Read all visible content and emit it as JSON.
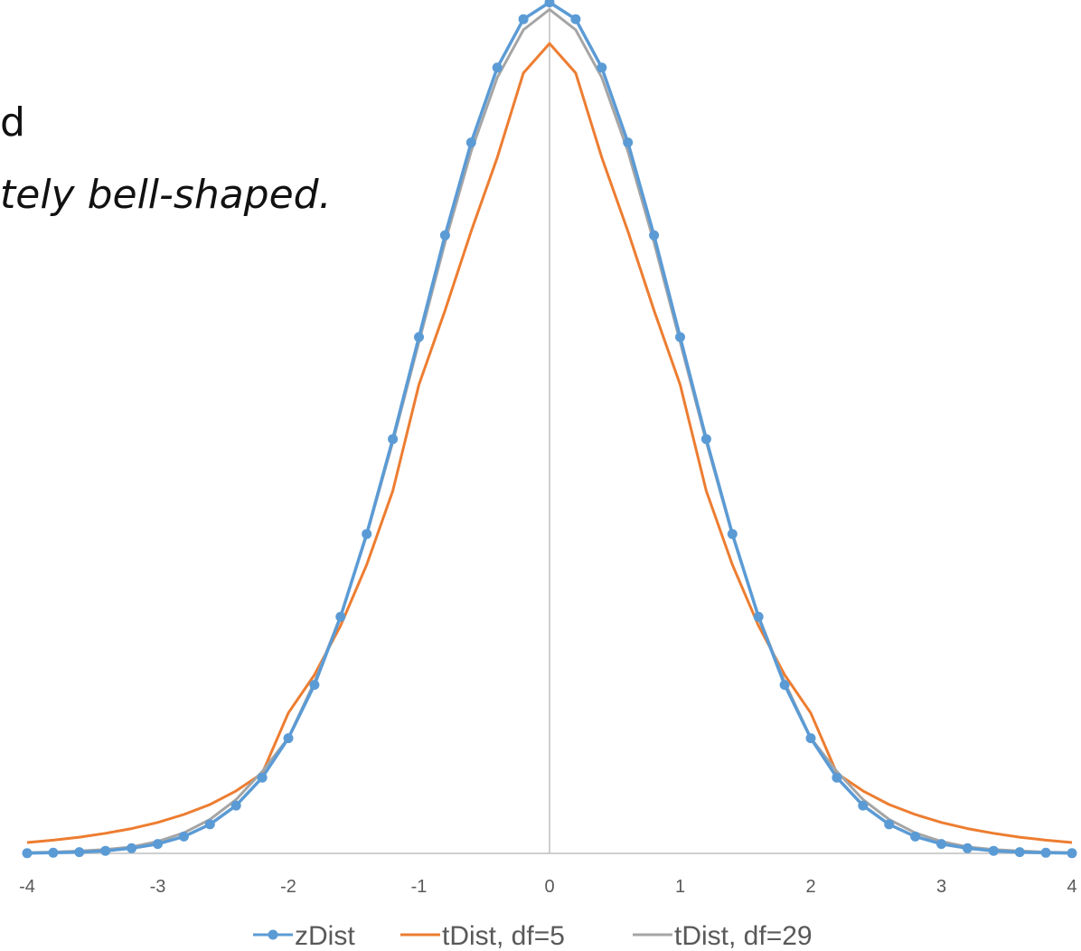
{
  "slide": {
    "line1": "d",
    "line2": "tely bell-shaped."
  },
  "chart_data": {
    "type": "line",
    "xlim": [
      -4,
      4
    ],
    "ylim": [
      0,
      0.4
    ],
    "x_ticks": [
      "-4",
      "-3",
      "-2",
      "-1",
      "0",
      "1",
      "2",
      "3",
      "4"
    ],
    "x": [
      -4,
      -3.8,
      -3.6,
      -3.4,
      -3.2,
      -3,
      -2.8,
      -2.6,
      -2.4,
      -2.2,
      -2,
      -1.8,
      -1.6,
      -1.4,
      -1.2,
      -1,
      -0.8,
      -0.6,
      -0.4,
      -0.2,
      0,
      0.2,
      0.4,
      0.6,
      0.8,
      1,
      1.2,
      1.4,
      1.6,
      1.8,
      2,
      2.2,
      2.4,
      2.6,
      2.8,
      3,
      3.2,
      3.4,
      3.6,
      3.8,
      4
    ],
    "series": [
      {
        "name": "zDist",
        "color": "#5B9BD5",
        "marker": "circle",
        "values": [
          0.0001,
          0.0003,
          0.0006,
          0.0012,
          0.0024,
          0.0044,
          0.0079,
          0.0136,
          0.0224,
          0.0355,
          0.054,
          0.079,
          0.1109,
          0.1497,
          0.1942,
          0.242,
          0.2897,
          0.3332,
          0.3683,
          0.391,
          0.3989,
          0.391,
          0.3683,
          0.3332,
          0.2897,
          0.242,
          0.1942,
          0.1497,
          0.1109,
          0.079,
          0.054,
          0.0355,
          0.0224,
          0.0136,
          0.0079,
          0.0044,
          0.0024,
          0.0012,
          0.0006,
          0.0003,
          0.0001
        ]
      },
      {
        "name": "tDist, df=5",
        "color": "#ED7D31",
        "marker": "none",
        "values": [
          0.0051,
          0.0062,
          0.0076,
          0.0094,
          0.0116,
          0.0145,
          0.0182,
          0.0229,
          0.0293,
          0.0375,
          0.0658,
          0.0837,
          0.1067,
          0.1353,
          0.1699,
          0.2197,
          0.2545,
          0.2916,
          0.3262,
          0.3658,
          0.3796,
          0.3658,
          0.3262,
          0.2916,
          0.2545,
          0.2197,
          0.1699,
          0.1353,
          0.1067,
          0.0837,
          0.0658,
          0.0375,
          0.0293,
          0.0229,
          0.0182,
          0.0145,
          0.0116,
          0.0094,
          0.0076,
          0.0062,
          0.0051
        ]
      },
      {
        "name": "tDist, df=29",
        "color": "#A5A5A5",
        "marker": "none",
        "values": [
          0.0004,
          0.0006,
          0.0011,
          0.0018,
          0.003,
          0.0056,
          0.0096,
          0.0159,
          0.0252,
          0.0384,
          0.0541,
          0.0803,
          0.1112,
          0.1492,
          0.1929,
          0.2397,
          0.2864,
          0.3291,
          0.3637,
          0.386,
          0.3956,
          0.386,
          0.3637,
          0.3291,
          0.2864,
          0.2397,
          0.1929,
          0.1492,
          0.1112,
          0.0803,
          0.0541,
          0.0384,
          0.0252,
          0.0159,
          0.0096,
          0.0056,
          0.003,
          0.0018,
          0.0011,
          0.0006,
          0.0004
        ]
      }
    ],
    "legend_position": "bottom",
    "grid": false
  }
}
